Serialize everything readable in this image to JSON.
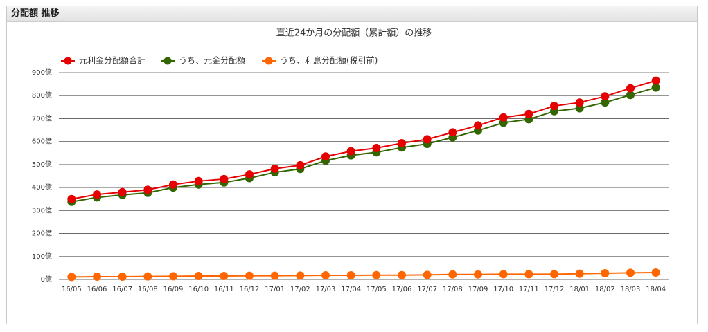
{
  "header": {
    "title": "分配額 推移"
  },
  "chart_data": {
    "type": "line",
    "title": "直近24か月の分配額（累計額）の推移",
    "categories": [
      "16/05",
      "16/06",
      "16/07",
      "16/08",
      "16/09",
      "16/10",
      "16/11",
      "16/12",
      "17/01",
      "17/02",
      "17/03",
      "17/04",
      "17/05",
      "17/06",
      "17/07",
      "17/08",
      "17/09",
      "17/10",
      "17/11",
      "17/12",
      "18/01",
      "18/02",
      "18/03",
      "18/04"
    ],
    "series": [
      {
        "name": "元利金分配額合計",
        "color": "#e60000",
        "values": [
          350,
          370,
          380,
          390,
          413,
          428,
          437,
          457,
          482,
          497,
          535,
          558,
          572,
          593,
          610,
          640,
          670,
          705,
          720,
          755,
          770,
          797,
          832,
          865
        ]
      },
      {
        "name": "うち、元金分配額",
        "color": "#336600",
        "values": [
          338,
          357,
          368,
          377,
          400,
          413,
          422,
          441,
          466,
          481,
          517,
          540,
          553,
          574,
          590,
          618,
          648,
          682,
          697,
          732,
          745,
          770,
          803,
          835
        ]
      },
      {
        "name": "うち、利息分配額(税引前)",
        "color": "#ff6600",
        "values": [
          11,
          12,
          12,
          13,
          14,
          15,
          15,
          16,
          16,
          17,
          18,
          18,
          19,
          19,
          20,
          22,
          22,
          23,
          23,
          23,
          25,
          27,
          29,
          30
        ]
      }
    ],
    "ylim": [
      0,
      900
    ],
    "yticks": [
      {
        "value": 0,
        "label": "0億"
      },
      {
        "value": 100,
        "label": "100億"
      },
      {
        "value": 200,
        "label": "200億"
      },
      {
        "value": 300,
        "label": "300億"
      },
      {
        "value": 400,
        "label": "400億"
      },
      {
        "value": 500,
        "label": "500億"
      },
      {
        "value": 600,
        "label": "600億"
      },
      {
        "value": 700,
        "label": "700億"
      },
      {
        "value": 800,
        "label": "800億"
      },
      {
        "value": 900,
        "label": "900億"
      }
    ],
    "grid": true,
    "legend": "top-left"
  }
}
